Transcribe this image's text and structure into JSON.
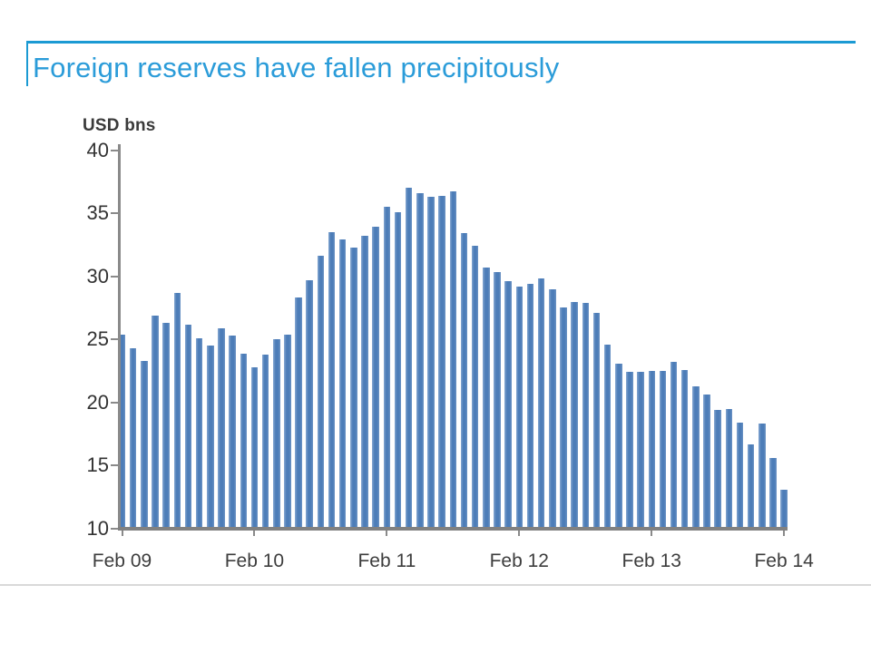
{
  "page": {
    "title": "Foreign reserves have fallen precipitously"
  },
  "colors": {
    "accent_blue": "#1b9ad3",
    "title_blue": "#2b9cd9",
    "bar_blue": "#4d7db8",
    "bar_edge_light": "#86a8d2",
    "axis_gray": "#8a8a8a",
    "text_dark": "#333333",
    "divider_gray": "#d9d9d9"
  },
  "chart_data": {
    "type": "bar",
    "title": "Foreign reserves have fallen precipitously",
    "xlabel": "",
    "ylabel": "USD bns",
    "ylim": [
      10,
      40
    ],
    "yticks": [
      10,
      15,
      20,
      25,
      30,
      35,
      40
    ],
    "grid": false,
    "legend": false,
    "frequency": "monthly",
    "xtick_labels": [
      "Feb 09",
      "Feb 10",
      "Feb 11",
      "Feb 12",
      "Feb 13",
      "Feb 14"
    ],
    "xtick_every": 12,
    "values": [
      25.4,
      24.3,
      23.3,
      26.9,
      26.3,
      28.7,
      26.2,
      25.1,
      24.5,
      25.9,
      25.3,
      23.9,
      22.8,
      23.8,
      25.0,
      25.4,
      28.3,
      29.7,
      31.6,
      33.5,
      32.9,
      32.3,
      33.2,
      33.9,
      35.5,
      35.1,
      37.0,
      36.6,
      36.3,
      36.4,
      36.7,
      33.4,
      32.4,
      30.7,
      30.3,
      29.6,
      29.2,
      29.4,
      29.8,
      29.0,
      27.5,
      28.0,
      27.9,
      27.1,
      24.6,
      23.1,
      22.4,
      22.4,
      22.5,
      22.5,
      23.2,
      22.6,
      21.3,
      20.6,
      19.4,
      19.5,
      18.4,
      16.7,
      18.3,
      15.6,
      13.1
    ]
  }
}
